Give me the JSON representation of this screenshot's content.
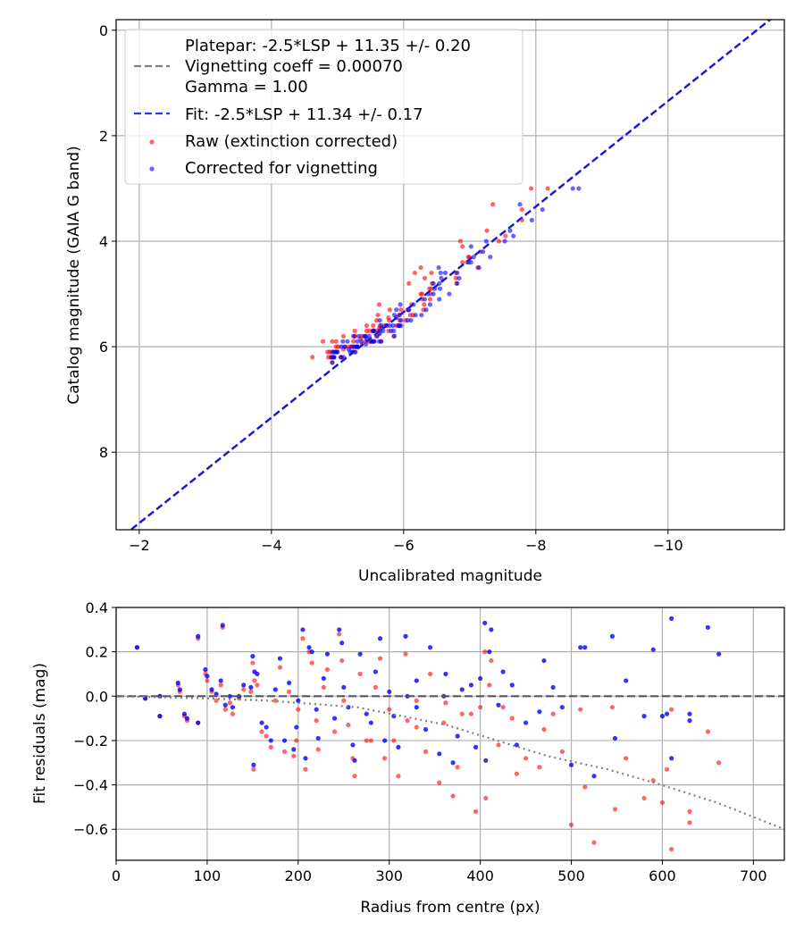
{
  "colors": {
    "raw": "#ff0000",
    "corrected": "#0000ff",
    "platepar": "#808080",
    "fit": "#0000ee",
    "grid": "#b0b0b0"
  },
  "chart_data": [
    {
      "type": "scatter",
      "title": "",
      "xlabel": "Uncalibrated magnitude",
      "ylabel": "Catalog magnitude (GAIA G band)",
      "xlim": [
        -1.65,
        -11.76
      ],
      "ylim": [
        9.47,
        -0.2
      ],
      "x_inverted": true,
      "y_inverted": true,
      "xticks": [
        -2,
        -4,
        -6,
        -8,
        -10
      ],
      "xtick_labels": [
        "−2",
        "−4",
        "−6",
        "−8",
        "−10"
      ],
      "yticks": [
        0,
        2,
        4,
        6,
        8
      ],
      "ytick_labels": [
        "0",
        "2",
        "4",
        "6",
        "8"
      ],
      "grid": true,
      "legend_position": "top-left",
      "legend": [
        {
          "type": "line",
          "label_lines": [
            "Platepar: -2.5*LSP + 11.35 +/- 0.20",
            "Vignetting coeff = 0.00070",
            "Gamma = 1.00"
          ],
          "style": "dashed",
          "color": "#808080"
        },
        {
          "type": "line",
          "label": "Fit: -2.5*LSP + 11.34 +/- 0.17",
          "style": "dashed",
          "color": "#0000ee"
        },
        {
          "type": "marker",
          "label": "Raw (extinction corrected)",
          "color": "#ff0000"
        },
        {
          "type": "marker",
          "label": "Corrected for vignetting",
          "color": "#0000ff"
        }
      ],
      "fit_line": {
        "slope": 1,
        "intercept": 11.34
      },
      "platepar_line": {
        "slope": 1,
        "intercept": 11.35
      },
      "note": "points derived per star: x = catalog_mag - 11.34 - residual"
    },
    {
      "type": "scatter",
      "xlabel": "Radius from centre (px)",
      "ylabel": "Fit residuals (mag)",
      "xlim": [
        0,
        734
      ],
      "ylim": [
        -0.74,
        0.4
      ],
      "xticks": [
        0,
        100,
        200,
        300,
        400,
        500,
        600,
        700
      ],
      "xtick_labels": [
        "0",
        "100",
        "200",
        "300",
        "400",
        "500",
        "600",
        "700"
      ],
      "yticks": [
        0.4,
        0.2,
        0.0,
        -0.2,
        -0.4,
        -0.6
      ],
      "ytick_labels": [
        "0.4",
        "0.2",
        "0.0",
        "−0.2",
        "−0.4",
        "−0.6"
      ],
      "grid": true,
      "zero_line": 0,
      "vignetting_curve": {
        "r": [
          0,
          100,
          167,
          265,
          363,
          474,
          540,
          599,
          660,
          734
        ],
        "y": [
          0,
          -0.01,
          -0.02,
          -0.05,
          -0.13,
          -0.27,
          -0.33,
          -0.4,
          -0.48,
          -0.6
        ]
      }
    }
  ],
  "stars_columns": [
    "radius_px",
    "residual_corrected",
    "residual_raw",
    "catalog_mag"
  ],
  "stars": [
    [
      23,
      0.22,
      0.22,
      5.9
    ],
    [
      32,
      -0.01,
      -0.01,
      6.1
    ],
    [
      48,
      0,
      0,
      5.6
    ],
    [
      48,
      -0.09,
      -0.09,
      6.2
    ],
    [
      68,
      0.06,
      0.05,
      5.8
    ],
    [
      70,
      0.03,
      0.02,
      5.3
    ],
    [
      75,
      -0.08,
      -0.09,
      6.0
    ],
    [
      78,
      -0.1,
      -0.11,
      5.7
    ],
    [
      90,
      0.27,
      0.26,
      4.8
    ],
    [
      90,
      -0.12,
      -0.12,
      6.3
    ],
    [
      98,
      0.12,
      0.1,
      5.5
    ],
    [
      100,
      0.09,
      0.07,
      5.9
    ],
    [
      105,
      0.03,
      0.02,
      6.1
    ],
    [
      110,
      0.01,
      -0.02,
      5.2
    ],
    [
      115,
      0.07,
      0.05,
      4.6
    ],
    [
      117,
      0.32,
      0.31,
      5.8
    ],
    [
      120,
      -0.04,
      -0.06,
      6.0
    ],
    [
      125,
      0,
      -0.03,
      5.7
    ],
    [
      128,
      -0.05,
      -0.08,
      6.2
    ],
    [
      135,
      0,
      -0.01,
      5.4
    ],
    [
      148,
      0.04,
      0.02,
      4.4
    ],
    [
      150,
      0.18,
      0.15,
      5.6
    ],
    [
      151,
      -0.31,
      -0.33,
      6.1
    ],
    [
      152,
      0.11,
      0.07,
      5.0
    ],
    [
      155,
      0.1,
      0.05,
      5.9
    ],
    [
      160,
      -0.12,
      -0.16,
      6.0
    ],
    [
      165,
      -0.14,
      -0.18,
      5.8
    ],
    [
      170,
      -0.2,
      -0.23,
      6.2
    ],
    [
      175,
      0.03,
      -0.02,
      4.9
    ],
    [
      180,
      0.17,
      0.13,
      5.7
    ],
    [
      185,
      -0.2,
      -0.25,
      5.5
    ],
    [
      190,
      0.06,
      0.02,
      4.2
    ],
    [
      195,
      -0.24,
      -0.27,
      6.1
    ],
    [
      198,
      -0.14,
      -0.2,
      5.9
    ],
    [
      205,
      0.3,
      0.26,
      5.3
    ],
    [
      208,
      -0.28,
      -0.33,
      6.0
    ],
    [
      212,
      0.22,
      0.2,
      5.6
    ],
    [
      215,
      0.2,
      0.15,
      4.7
    ],
    [
      220,
      -0.06,
      -0.11,
      5.8
    ],
    [
      222,
      -0.19,
      -0.24,
      6.2
    ],
    [
      228,
      0.08,
      0.04,
      5.1
    ],
    [
      232,
      0.19,
      0.12,
      5.9
    ],
    [
      240,
      -0.1,
      -0.16,
      5.7
    ],
    [
      245,
      0.3,
      0.28,
      4.5
    ],
    [
      248,
      0.24,
      0.16,
      5.4
    ],
    [
      255,
      -0.05,
      -0.13,
      6.0
    ],
    [
      260,
      -0.22,
      -0.28,
      5.8
    ],
    [
      262,
      -0.29,
      -0.36,
      6.1
    ],
    [
      268,
      0.19,
      0.1,
      4.0
    ],
    [
      275,
      -0.08,
      -0.2,
      5.6
    ],
    [
      285,
      0.11,
      0.04,
      5.9
    ],
    [
      290,
      0.26,
      0.17,
      5.2
    ],
    [
      295,
      -0.2,
      -0.28,
      6.2
    ],
    [
      300,
      0.02,
      -0.06,
      4.3
    ],
    [
      305,
      -0.09,
      -0.2,
      5.7
    ],
    [
      310,
      -0.23,
      -0.36,
      6.0
    ],
    [
      318,
      0.27,
      0.19,
      5.5
    ],
    [
      320,
      0,
      -0.11,
      4.8
    ],
    [
      330,
      0.07,
      -0.02,
      5.9
    ],
    [
      340,
      -0.15,
      -0.25,
      5.3
    ],
    [
      345,
      0.22,
      0.1,
      3.9
    ],
    [
      355,
      -0.26,
      -0.39,
      6.1
    ],
    [
      362,
      0.1,
      -0.03,
      5.6
    ],
    [
      370,
      -0.3,
      -0.45,
      5.8
    ],
    [
      375,
      -0.18,
      -0.32,
      4.6
    ],
    [
      380,
      0.03,
      -0.08,
      5.0
    ],
    [
      390,
      0.05,
      -0.08,
      5.7
    ],
    [
      395,
      -0.23,
      -0.52,
      6.2
    ],
    [
      400,
      0.08,
      -0.05,
      4.4
    ],
    [
      405,
      0.33,
      0.2,
      5.4
    ],
    [
      406,
      -0.29,
      -0.46,
      5.9
    ],
    [
      410,
      0.2,
      0.05,
      3.6
    ],
    [
      412,
      0.3,
      0.16,
      5.1
    ],
    [
      420,
      -0.04,
      -0.22,
      6.0
    ],
    [
      425,
      0.11,
      -0.05,
      4.9
    ],
    [
      435,
      0.05,
      -0.1,
      5.6
    ],
    [
      440,
      -0.22,
      -0.35,
      4.1
    ],
    [
      450,
      -0.12,
      -0.28,
      5.8
    ],
    [
      465,
      -0.07,
      -0.32,
      4.7
    ],
    [
      470,
      0.16,
      -0.15,
      3.4
    ],
    [
      480,
      0.04,
      -0.08,
      5.3
    ],
    [
      490,
      -0.05,
      -0.25,
      6.1
    ],
    [
      500,
      -0.31,
      -0.58,
      4.5
    ],
    [
      510,
      0.22,
      -0.06,
      5.5
    ],
    [
      515,
      0.22,
      -0.41,
      3.0
    ],
    [
      525,
      -0.36,
      -0.66,
      5.9
    ],
    [
      545,
      0.27,
      -0.05,
      4.3
    ],
    [
      548,
      -0.19,
      -0.51,
      5.2
    ],
    [
      560,
      0.07,
      -0.28,
      3.8
    ],
    [
      580,
      -0.09,
      -0.46,
      4.8
    ],
    [
      590,
      0.21,
      -0.38,
      5.7
    ],
    [
      600,
      -0.09,
      -0.48,
      4.0
    ],
    [
      605,
      -0.08,
      -0.33,
      5.4
    ],
    [
      610,
      -0.28,
      -0.69,
      3.3
    ],
    [
      610,
      0.35,
      -0.06,
      5.0
    ],
    [
      630,
      -0.11,
      -0.57,
      4.6
    ],
    [
      630,
      -0.08,
      -0.52,
      5.9
    ],
    [
      650,
      0.31,
      -0.16,
      3.0
    ],
    [
      662,
      0.19,
      -0.3,
      5.6
    ],
    [
      140,
      0.05,
      0.03,
      5.75
    ],
    [
      200,
      -0.02,
      -0.06,
      5.65
    ],
    [
      250,
      0.04,
      -0.02,
      5.95
    ],
    [
      280,
      -0.12,
      -0.2,
      6.05
    ],
    [
      330,
      -0.05,
      -0.14,
      5.85
    ],
    [
      360,
      0.0,
      -0.12,
      5.45
    ]
  ]
}
